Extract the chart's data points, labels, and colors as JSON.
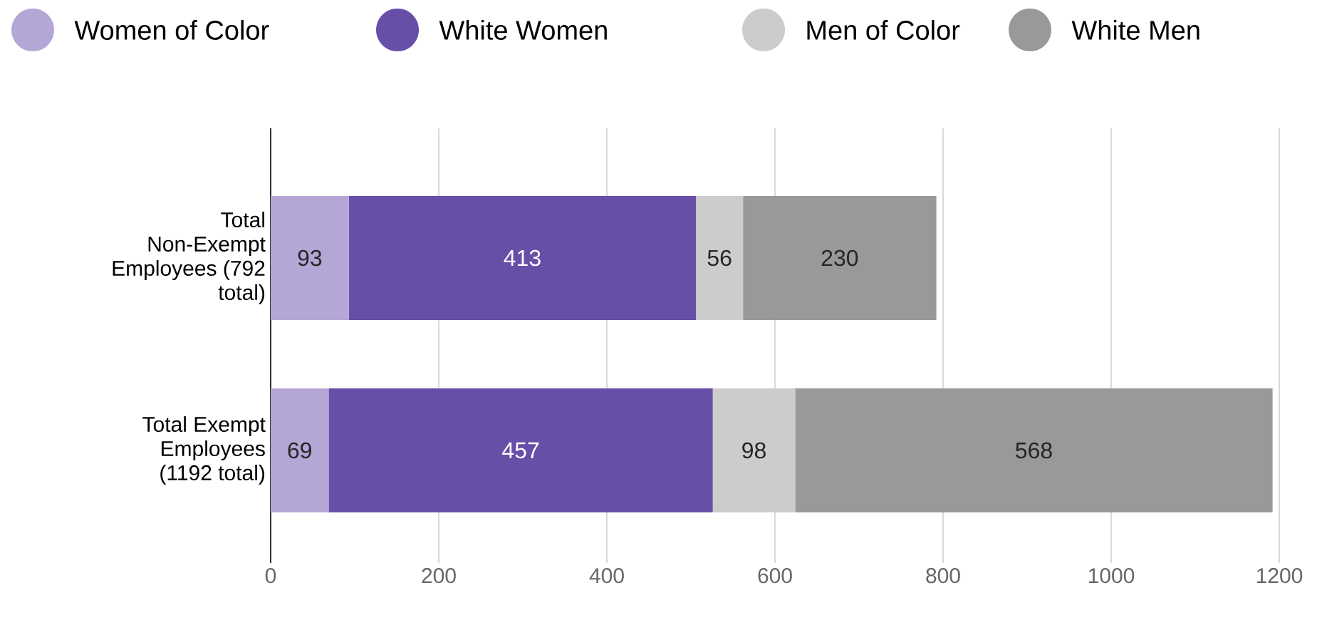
{
  "chart_data": {
    "type": "bar",
    "orientation": "horizontal",
    "stacked": true,
    "categories": [
      "Total Non-Exempt Employees (792 total)",
      "Total Exempt Employees (1192 total)"
    ],
    "series": [
      {
        "name": "Women of Color",
        "color": "#b4a7d6",
        "values": [
          93,
          69
        ]
      },
      {
        "name": "White Women",
        "color": "#674ea7",
        "values": [
          413,
          457
        ]
      },
      {
        "name": "Men of Color",
        "color": "#cccccc",
        "values": [
          56,
          98
        ]
      },
      {
        "name": "White Men",
        "color": "#999999",
        "values": [
          230,
          568
        ]
      }
    ],
    "xlim": [
      0,
      1200
    ],
    "xticks": [
      0,
      200,
      400,
      600,
      800,
      1000,
      1200
    ],
    "grid": "x",
    "legend": "top",
    "data_labels": true
  }
}
